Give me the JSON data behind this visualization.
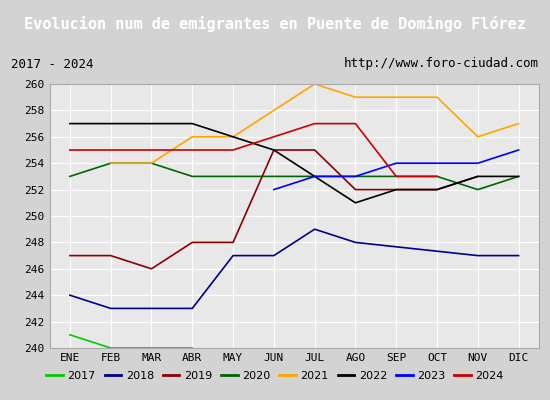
{
  "title": "Evolucion num de emigrantes en Puente de Domingo Flórez",
  "subtitle_left": "2017 - 2024",
  "subtitle_right": "http://www.foro-ciudad.com",
  "months": [
    "ENE",
    "FEB",
    "MAR",
    "ABR",
    "MAY",
    "JUN",
    "JUL",
    "AGO",
    "SEP",
    "OCT",
    "NOV",
    "DIC"
  ],
  "ylim": [
    240,
    260
  ],
  "yticks": [
    240,
    242,
    244,
    246,
    248,
    250,
    252,
    254,
    256,
    258,
    260
  ],
  "series": {
    "2017": {
      "color": "#00cc00",
      "data": [
        241,
        240,
        null,
        240,
        null,
        null,
        null,
        null,
        null,
        null,
        null,
        null
      ]
    },
    "2018": {
      "color": "#00008b",
      "data": [
        244,
        243,
        243,
        243,
        247,
        247,
        249,
        248,
        null,
        null,
        247,
        247
      ]
    },
    "2019": {
      "color": "#8b0000",
      "data": [
        247,
        247,
        246,
        248,
        248,
        255,
        255,
        252,
        252,
        252,
        253,
        null
      ]
    },
    "2020": {
      "color": "#006400",
      "data": [
        253,
        254,
        254,
        253,
        253,
        253,
        253,
        253,
        253,
        253,
        252,
        253
      ]
    },
    "2021": {
      "color": "#ffa500",
      "data": [
        null,
        254,
        254,
        256,
        256,
        null,
        260,
        259,
        null,
        259,
        256,
        257
      ]
    },
    "2022": {
      "color": "#000000",
      "data": [
        257,
        257,
        257,
        257,
        256,
        255,
        253,
        251,
        252,
        252,
        253,
        253
      ]
    },
    "2023": {
      "color": "#0000ff",
      "data": [
        null,
        null,
        null,
        null,
        null,
        252,
        253,
        253,
        254,
        254,
        254,
        255
      ]
    },
    "2024": {
      "color": "#cc0000",
      "data": [
        255,
        255,
        255,
        255,
        255,
        256,
        257,
        257,
        253,
        253,
        null,
        null
      ]
    }
  },
  "title_bgcolor": "#3366cc",
  "title_color": "white",
  "subtitle_bgcolor": "#d3d3d3",
  "plot_bgcolor": "#e8e8e8",
  "legend_bgcolor": "white",
  "grid_color": "white"
}
